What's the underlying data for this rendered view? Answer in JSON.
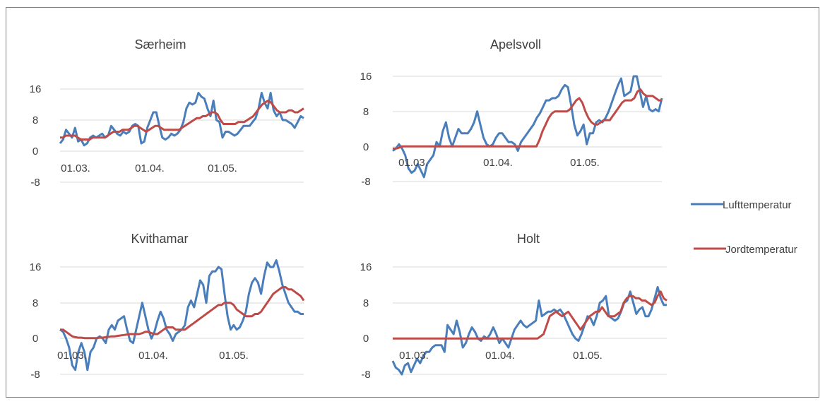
{
  "chart_data": [
    {
      "type": "line",
      "title": "Særheim",
      "xlabel": "",
      "ylabel": "",
      "ylim": [
        -8,
        16
      ],
      "yticks": [
        "16",
        "8",
        "0",
        "-8"
      ],
      "xticks": [
        "01.03.",
        "01.04.",
        "01.05."
      ],
      "series": [
        {
          "name": "Lufttemperatur",
          "color": "#4a7ebb",
          "values": [
            2,
            3,
            5.5,
            4.5,
            3.5,
            6,
            2.5,
            3,
            1.5,
            2,
            3.5,
            4,
            3.5,
            4,
            4.5,
            3.5,
            4,
            6.5,
            5.5,
            4.5,
            4,
            5,
            4.5,
            5,
            6.5,
            7,
            6.5,
            2,
            2.5,
            6,
            8,
            10,
            10,
            6.5,
            3.5,
            3,
            3.5,
            4.5,
            4,
            4.5,
            5.5,
            7.5,
            11,
            12.5,
            12,
            12.5,
            15,
            14,
            13.5,
            11,
            9,
            13,
            8,
            7.5,
            3.5,
            5,
            5,
            4.5,
            4,
            4.5,
            5.5,
            6.5,
            6.5,
            6.5,
            7.5,
            8.5,
            11,
            15,
            12.5,
            11,
            15,
            10.5,
            9,
            10,
            8,
            8,
            7.5,
            7,
            6,
            7.5,
            9,
            8.5
          ]
        },
        {
          "name": "Jordtemperatur",
          "color": "#be4b48",
          "values": [
            3.5,
            3.5,
            4,
            4,
            4,
            4,
            3.5,
            3,
            3,
            3,
            3,
            3.5,
            3.5,
            3.5,
            3.5,
            3.5,
            4,
            4.5,
            5,
            5,
            5,
            5.5,
            5.5,
            5.5,
            6,
            6.5,
            6.5,
            6,
            5.5,
            5,
            5.5,
            6,
            6.5,
            6.5,
            6,
            5.5,
            5.5,
            5.5,
            5.5,
            5.5,
            5.5,
            6,
            6.5,
            7,
            7.5,
            8,
            8.5,
            8.5,
            9,
            9,
            9.5,
            10,
            10,
            9.5,
            8,
            7,
            7,
            7,
            7,
            7,
            7.5,
            7.5,
            7.5,
            8,
            8.5,
            9,
            10,
            11,
            12,
            12.5,
            13,
            12.5,
            11.5,
            10.5,
            10,
            10,
            10,
            10.5,
            10.5,
            10,
            10,
            10.5,
            11
          ]
        }
      ]
    },
    {
      "type": "line",
      "title": "Apelsvoll",
      "xlabel": "",
      "ylabel": "",
      "ylim": [
        -8,
        16
      ],
      "yticks": [
        "16",
        "8",
        "0",
        "-8"
      ],
      "xticks": [
        "01.03.",
        "01.04.",
        "01.05."
      ],
      "series": [
        {
          "name": "Lufttemperatur",
          "color": "#4a7ebb",
          "values": [
            -1,
            -0.5,
            0.5,
            -0.5,
            -2,
            -5,
            -6,
            -5.5,
            -4,
            -5.5,
            -7,
            -4,
            -3,
            -2,
            1,
            0,
            3.5,
            5.5,
            2,
            0,
            2,
            4,
            3,
            3,
            3,
            4,
            5.5,
            8,
            5,
            2,
            0.5,
            0,
            0.5,
            2,
            3,
            3,
            2,
            1,
            1,
            0.5,
            -1,
            1,
            2,
            3,
            4,
            5,
            6.5,
            7.5,
            9,
            10.5,
            10.5,
            11,
            11,
            11.5,
            13,
            14,
            13.5,
            9.5,
            5,
            2.5,
            3.5,
            5,
            0.5,
            3,
            3,
            5.5,
            6,
            5.5,
            6.5,
            8,
            10,
            12,
            14,
            15.5,
            11.5,
            12,
            12.5,
            16,
            16,
            12.5,
            9,
            11.5,
            8.5,
            8,
            8.5,
            8,
            11
          ]
        },
        {
          "name": "Jordtemperatur",
          "color": "#be4b48",
          "values": [
            -0.5,
            -0.5,
            -0.3,
            0,
            0,
            0,
            0,
            0,
            0,
            0,
            0,
            0,
            0,
            0,
            0,
            0,
            0,
            0,
            0,
            0,
            0,
            0,
            0,
            0,
            0,
            0,
            0,
            0,
            0,
            0,
            0,
            0,
            0,
            0,
            0,
            0,
            0,
            0,
            0,
            0,
            0,
            0,
            0,
            0,
            0,
            0,
            0,
            0,
            1.5,
            3.5,
            5,
            6.5,
            7.5,
            8,
            8,
            8,
            8,
            8,
            8.5,
            9.5,
            10.5,
            11,
            10,
            8,
            6.5,
            5.5,
            5,
            5,
            5.5,
            6,
            6,
            6,
            7,
            8,
            9,
            10,
            10.5,
            10.5,
            10.5,
            11,
            12.5,
            13,
            12,
            11.5,
            11.5,
            11.5,
            11,
            10.5,
            10.5
          ]
        }
      ]
    },
    {
      "type": "line",
      "title": "Kvithamar",
      "xlabel": "",
      "ylabel": "",
      "ylim": [
        -8,
        16
      ],
      "yticks": [
        "16",
        "8",
        "0",
        "-8"
      ],
      "xticks": [
        "01.03.",
        "01.04.",
        "01.05."
      ],
      "series": [
        {
          "name": "Lufttemperatur",
          "color": "#4a7ebb",
          "values": [
            2,
            1.5,
            0,
            -2,
            -6,
            -7,
            -3,
            -1,
            -3,
            -7,
            -3,
            -2,
            0,
            0.5,
            0,
            -1,
            2,
            3,
            2,
            4,
            4.5,
            5,
            2,
            -0.5,
            -1,
            2,
            5,
            8,
            5,
            2,
            0,
            1.5,
            4,
            6,
            4.5,
            2,
            1,
            -0.5,
            1,
            1.5,
            2,
            3,
            7,
            8.5,
            7,
            10,
            13,
            12,
            8,
            14,
            15,
            15,
            16,
            15.5,
            10,
            5,
            2,
            3,
            2,
            2.5,
            4,
            6,
            10,
            12.5,
            13.5,
            12.5,
            10,
            14,
            17,
            16,
            16,
            17.5,
            15,
            12,
            10,
            8,
            7,
            6,
            6,
            5.5,
            5.5
          ]
        },
        {
          "name": "Jordtemperatur",
          "color": "#be4b48",
          "values": [
            2,
            2,
            1.5,
            1,
            0.5,
            0.3,
            0.2,
            0.2,
            0.1,
            0.1,
            0.1,
            0.1,
            0.1,
            0.2,
            0.2,
            0.3,
            0.4,
            0.5,
            0.5,
            0.6,
            0.7,
            0.8,
            0.9,
            1,
            1,
            1,
            1,
            1.2,
            1.5,
            1.5,
            1.2,
            1,
            1,
            1.5,
            2,
            2.5,
            2.5,
            2.5,
            2,
            2,
            2,
            2,
            2.5,
            3,
            3.5,
            4,
            4.5,
            5,
            5.5,
            6,
            6.5,
            7,
            7.5,
            7.5,
            8,
            8,
            8,
            7.5,
            6.5,
            6,
            5.5,
            5,
            5,
            5,
            5.5,
            5.5,
            6,
            7,
            8,
            9,
            10,
            10.5,
            11,
            11.5,
            11.5,
            11,
            11,
            10.5,
            10,
            9.5,
            8.5
          ]
        }
      ]
    },
    {
      "type": "line",
      "title": "Holt",
      "xlabel": "",
      "ylabel": "",
      "ylim": [
        -8,
        16
      ],
      "yticks": [
        "16",
        "8",
        "0",
        "-8"
      ],
      "xticks": [
        "01.03.",
        "01.04.",
        "01.05."
      ],
      "series": [
        {
          "name": "Lufttemperatur",
          "color": "#4a7ebb",
          "values": [
            -5,
            -6.5,
            -7,
            -8,
            -6,
            -5.5,
            -7.5,
            -6,
            -4.5,
            -5.5,
            -4,
            -3,
            -3,
            -2,
            -1.5,
            -1.5,
            -1.5,
            -3,
            3,
            2,
            1,
            4,
            1.5,
            -2,
            -1,
            1,
            2.5,
            1.5,
            0,
            -0.5,
            0.5,
            0,
            1,
            2.5,
            1,
            -1,
            0,
            -1,
            -2,
            0,
            2,
            3,
            4,
            3,
            2.5,
            3,
            3.5,
            4,
            8.5,
            5,
            5.5,
            6,
            6,
            6.5,
            6,
            6.5,
            5.5,
            4,
            2.5,
            1,
            0,
            -0.5,
            1,
            3,
            5,
            4.5,
            3,
            5,
            8,
            8.5,
            9.5,
            5,
            4.5,
            4,
            4.5,
            6,
            8,
            8.5,
            10.5,
            8,
            5.5,
            6.5,
            7,
            5,
            5,
            6.5,
            9,
            11.5,
            9,
            7.5,
            7.5
          ]
        },
        {
          "name": "Jordtemperatur",
          "color": "#be4b48",
          "values": [
            0,
            0,
            0,
            0,
            0,
            0,
            0,
            0,
            0,
            0,
            0,
            0,
            0,
            0,
            0,
            0,
            0,
            0,
            0,
            0,
            0,
            0,
            0,
            0,
            0,
            0,
            0,
            0,
            0,
            0,
            0,
            0,
            0,
            0,
            0,
            0,
            0,
            0,
            0,
            0,
            0,
            0,
            0,
            0,
            0,
            0,
            0,
            0,
            0.5,
            1,
            3,
            5,
            5.5,
            6,
            5.5,
            5,
            5.5,
            6,
            5,
            4,
            3,
            2,
            3,
            4,
            5,
            5.5,
            6,
            6,
            7,
            6,
            5,
            5,
            5,
            5.5,
            6,
            8,
            9,
            9.5,
            9.5,
            9,
            9,
            8.5,
            8.5,
            8,
            7.5,
            8,
            9.5,
            10.5,
            9,
            8.5
          ]
        }
      ]
    }
  ],
  "legend": {
    "position": "right",
    "items": [
      {
        "label": "Lufttemperatur",
        "color": "#4a7ebb"
      },
      {
        "label": "Jordtemperatur",
        "color": "#be4b48"
      }
    ]
  }
}
